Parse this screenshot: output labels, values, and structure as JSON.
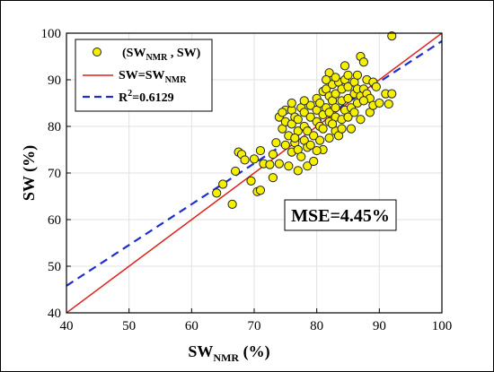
{
  "chart_data": {
    "type": "scatter",
    "xlabel": "SW",
    "xlabel_sub": "NMR",
    "xlabel_unit": " (%)",
    "ylabel": "SW (%)",
    "xlim": [
      40,
      100
    ],
    "ylim": [
      40,
      100
    ],
    "xticks": [
      40,
      50,
      60,
      70,
      80,
      90,
      100
    ],
    "yticks": [
      40,
      50,
      60,
      70,
      80,
      90,
      100
    ],
    "grid": true,
    "legend_position": "top-left",
    "legend": {
      "scatter": {
        "pre": "(SW",
        "sub": "NMR",
        "post": " , SW)"
      },
      "identity": {
        "pre": "SW=SW",
        "sub": "NMR"
      },
      "fit": {
        "pre": "R",
        "sup": "2",
        "post": "=0.6129"
      }
    },
    "annotation": "MSE=4.45%",
    "colors": {
      "marker_fill": "#f5f000",
      "marker_edge": "#222222",
      "identity_line": "#e0201a",
      "fit_line": "#1f2fcc"
    },
    "identity_line": {
      "x": [
        40,
        100
      ],
      "y": [
        40,
        100
      ]
    },
    "fit_line": {
      "x": [
        40,
        100
      ],
      "y": [
        45.8,
        98.3
      ]
    },
    "points": [
      [
        64,
        65.7
      ],
      [
        65,
        67.6
      ],
      [
        66.5,
        63.3
      ],
      [
        67,
        70.4
      ],
      [
        67.5,
        74.5
      ],
      [
        68,
        74
      ],
      [
        68.5,
        72.8
      ],
      [
        69.5,
        68.3
      ],
      [
        70,
        73
      ],
      [
        70.5,
        66
      ],
      [
        71,
        66.3
      ],
      [
        71,
        74.8
      ],
      [
        71.5,
        72
      ],
      [
        72.5,
        71.8
      ],
      [
        73,
        69
      ],
      [
        73,
        74
      ],
      [
        73.5,
        76.5
      ],
      [
        74,
        72
      ],
      [
        74,
        82
      ],
      [
        74.5,
        79.5
      ],
      [
        75,
        76
      ],
      [
        75,
        81
      ],
      [
        75,
        83.5
      ],
      [
        75.5,
        71.5
      ],
      [
        75.5,
        78
      ],
      [
        76,
        74.5
      ],
      [
        76,
        80.5
      ],
      [
        76,
        83.5
      ],
      [
        76.5,
        76.5
      ],
      [
        76.5,
        82
      ],
      [
        77,
        70.5
      ],
      [
        77,
        75
      ],
      [
        77,
        79
      ],
      [
        77,
        81.5
      ],
      [
        77.5,
        84
      ],
      [
        77.5,
        73.5
      ],
      [
        78,
        77
      ],
      [
        78,
        80
      ],
      [
        78,
        83
      ],
      [
        78.5,
        71.5
      ],
      [
        78.5,
        75.5
      ],
      [
        78.5,
        79
      ],
      [
        79,
        82
      ],
      [
        79,
        84.5
      ],
      [
        79.5,
        72.5
      ],
      [
        79.5,
        78
      ],
      [
        80,
        81
      ],
      [
        80,
        83.5
      ],
      [
        80,
        86
      ],
      [
        80.5,
        77
      ],
      [
        80.5,
        80
      ],
      [
        80.5,
        85
      ],
      [
        81,
        75
      ],
      [
        81,
        79.5
      ],
      [
        81,
        82.5
      ],
      [
        81,
        87.5
      ],
      [
        81.5,
        84
      ],
      [
        81.5,
        88
      ],
      [
        82,
        77.5
      ],
      [
        82,
        81
      ],
      [
        82,
        83
      ],
      [
        82,
        86.5
      ],
      [
        82,
        91.5
      ],
      [
        82.5,
        85.5
      ],
      [
        82.5,
        89
      ],
      [
        83,
        79
      ],
      [
        83,
        82
      ],
      [
        83,
        84
      ],
      [
        83,
        87
      ],
      [
        83.5,
        89.5
      ],
      [
        83.5,
        78
      ],
      [
        84,
        81.5
      ],
      [
        84,
        85.5
      ],
      [
        84,
        88
      ],
      [
        84.5,
        83.5
      ],
      [
        84.5,
        90
      ],
      [
        85,
        82
      ],
      [
        85,
        86
      ],
      [
        85,
        88.5
      ],
      [
        85.5,
        84
      ],
      [
        85.5,
        79.5
      ],
      [
        86,
        87
      ],
      [
        86,
        89.5
      ],
      [
        86.5,
        85
      ],
      [
        86.5,
        88
      ],
      [
        86.5,
        91
      ],
      [
        87,
        81.5
      ],
      [
        87,
        86.5
      ],
      [
        87,
        95
      ],
      [
        87.5,
        88
      ],
      [
        87.5,
        93.8
      ],
      [
        88,
        87
      ],
      [
        88,
        90
      ],
      [
        88.5,
        83
      ],
      [
        88.5,
        86
      ],
      [
        89,
        89.5
      ],
      [
        89,
        84.5
      ],
      [
        90,
        85
      ],
      [
        91,
        87
      ],
      [
        91.5,
        84.8
      ],
      [
        92,
        87
      ],
      [
        92,
        99.4
      ],
      [
        76.5,
        77.5
      ],
      [
        79,
        76
      ],
      [
        84,
        79.5
      ],
      [
        80,
        74.8
      ],
      [
        82.5,
        80.5
      ],
      [
        86,
        83
      ],
      [
        87.5,
        85.5
      ],
      [
        78,
        85.5
      ],
      [
        83,
        90.5
      ],
      [
        85,
        91
      ],
      [
        81.5,
        90
      ],
      [
        84.5,
        93
      ],
      [
        89.5,
        88.5
      ],
      [
        74.5,
        83
      ],
      [
        76,
        85
      ]
    ]
  }
}
